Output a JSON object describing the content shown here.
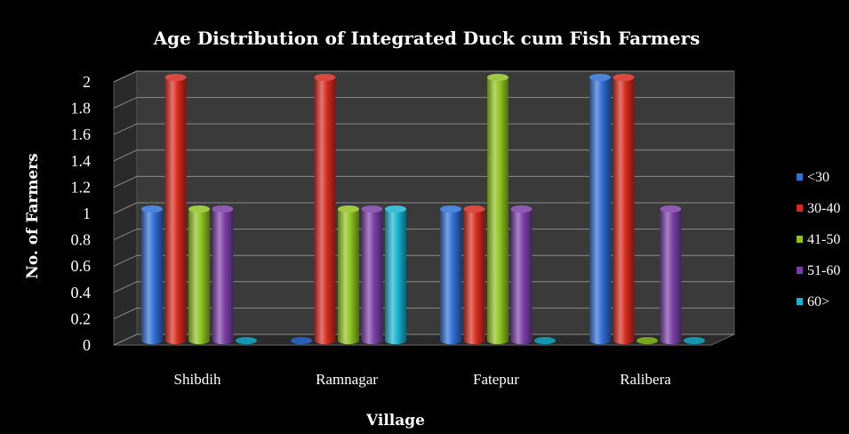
{
  "chart_data": {
    "type": "bar",
    "title": "Age Distribution of Integrated Duck cum Fish Farmers",
    "xlabel": "Village",
    "ylabel": "No. of Farmers",
    "categories": [
      "Shibdih",
      "Ramnagar",
      "Fatepur",
      "Ralibera"
    ],
    "ylim": [
      0,
      2
    ],
    "yticks": [
      "0",
      "0.2",
      "0.4",
      "0.6",
      "0.8",
      "1",
      "1.2",
      "1.4",
      "1.6",
      "1.8",
      "2"
    ],
    "grid": true,
    "legend_position": "right",
    "series": [
      {
        "name": "<30",
        "color": "#2f6fd6",
        "values": [
          1,
          0,
          1,
          2
        ]
      },
      {
        "name": "30-40",
        "color": "#d42a1e",
        "values": [
          2,
          2,
          1,
          2
        ]
      },
      {
        "name": "41-50",
        "color": "#8dc21f",
        "values": [
          1,
          1,
          2,
          0
        ]
      },
      {
        "name": "51-60",
        "color": "#7a3fa6",
        "values": [
          1,
          1,
          1,
          1
        ]
      },
      {
        "name": "60>",
        "color": "#18b2d0",
        "values": [
          0,
          1,
          0,
          0
        ]
      }
    ],
    "background": "#000000",
    "wall_color": "#3a3a3a",
    "floor_color": "#2b2b2b"
  }
}
